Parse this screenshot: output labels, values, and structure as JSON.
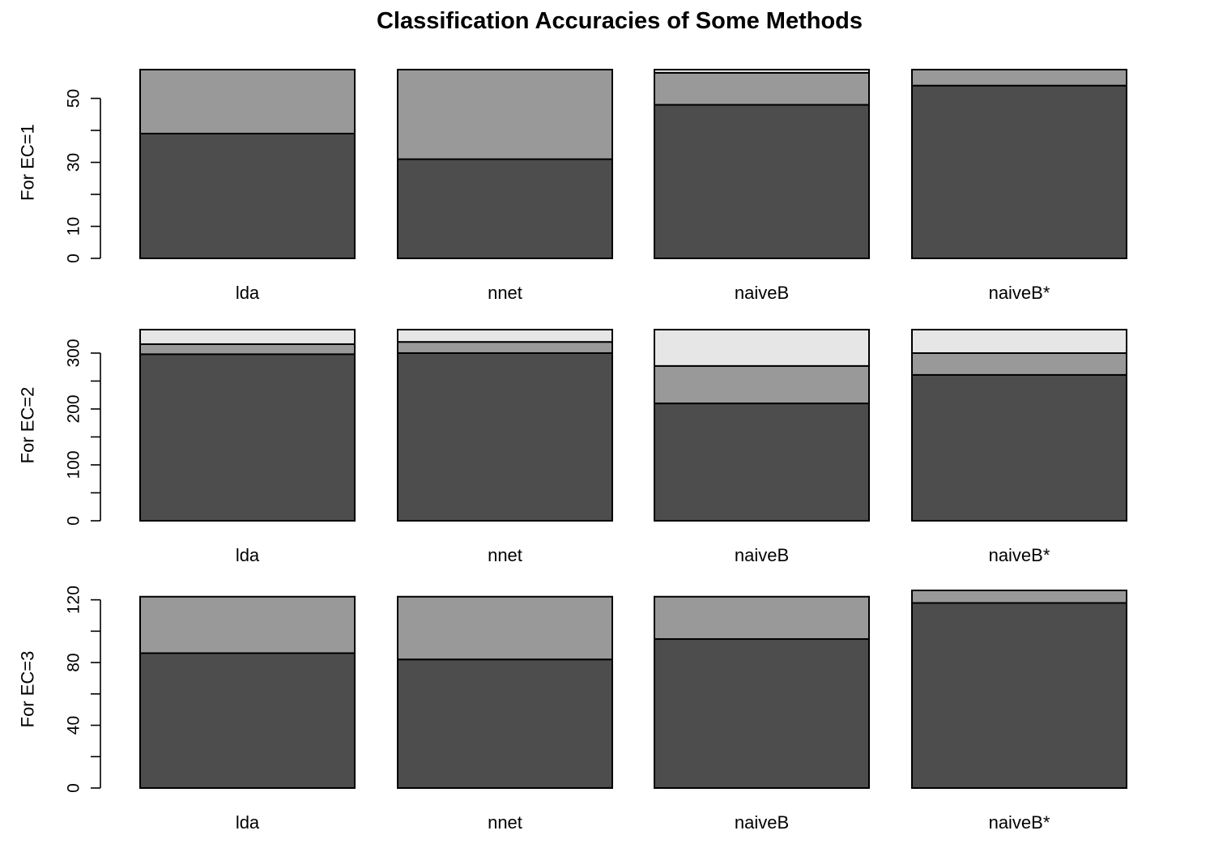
{
  "title": "Classification Accuracies of Some Methods",
  "colors": {
    "segment_colors": [
      "#4d4d4d",
      "#999999",
      "#e6e6e6"
    ],
    "stroke": "#000000"
  },
  "chart_data": [
    {
      "type": "bar",
      "stacked": true,
      "ylabel": "For EC=1",
      "ylim": [
        0,
        60
      ],
      "yticks": [
        0,
        10,
        30,
        50
      ],
      "yticks_minor": [
        20,
        40
      ],
      "categories": [
        "lda",
        "nnet",
        "naiveB",
        "naiveB*"
      ],
      "series": [
        {
          "values": [
            39,
            31,
            48,
            54
          ]
        },
        {
          "values": [
            20,
            28,
            10,
            5
          ]
        },
        {
          "values": [
            0,
            0,
            1,
            0
          ]
        }
      ]
    },
    {
      "type": "bar",
      "stacked": true,
      "ylabel": "For EC=2",
      "ylim": [
        0,
        342
      ],
      "yticks": [
        0,
        100,
        200,
        300
      ],
      "yticks_minor": [
        50,
        150,
        250
      ],
      "categories": [
        "lda",
        "nnet",
        "naiveB",
        "naiveB*"
      ],
      "series": [
        {
          "values": [
            298,
            300,
            210,
            261
          ]
        },
        {
          "values": [
            18,
            20,
            67,
            39
          ]
        },
        {
          "values": [
            26,
            22,
            65,
            42
          ]
        }
      ]
    },
    {
      "type": "bar",
      "stacked": true,
      "ylabel": "For EC=3",
      "ylim": [
        0,
        126
      ],
      "yticks": [
        0,
        40,
        80,
        120
      ],
      "yticks_minor": [
        20,
        60,
        100
      ],
      "categories": [
        "lda",
        "nnet",
        "naiveB",
        "naiveB*"
      ],
      "series": [
        {
          "values": [
            86,
            82,
            95,
            118
          ]
        },
        {
          "values": [
            36,
            40,
            27,
            8
          ]
        },
        {
          "values": [
            0,
            0,
            0,
            0
          ]
        }
      ]
    }
  ]
}
